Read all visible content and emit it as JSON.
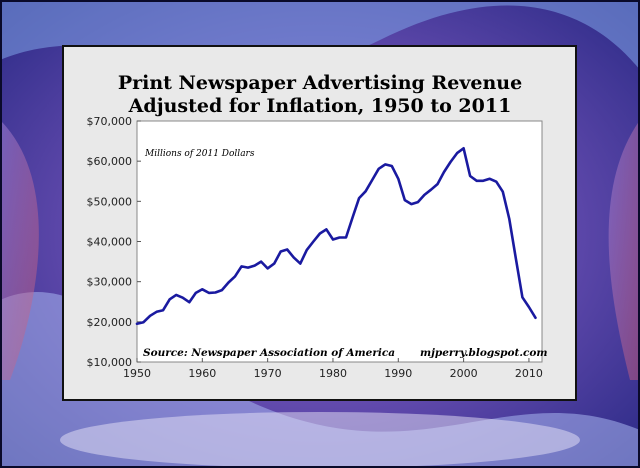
{
  "chart_data": {
    "type": "line",
    "title_lines": [
      "Print Newspaper Advertising Revenue",
      "Adjusted for Inflation, 1950 to 2011"
    ],
    "xlabel": "",
    "ylabel": "",
    "units_note": "Millions of 2011 Dollars",
    "source": "Source: Newspaper Association of America",
    "credit": "mjperry.blogspot.com",
    "xlim": [
      1950,
      2012
    ],
    "ylim": [
      10000,
      70000
    ],
    "x_ticks": [
      1950,
      1960,
      1970,
      1980,
      1990,
      2000,
      2010
    ],
    "x_tick_labels": [
      "1950",
      "1960",
      "1970",
      "1980",
      "1990",
      "2000",
      "2010"
    ],
    "y_ticks": [
      10000,
      20000,
      30000,
      40000,
      50000,
      60000,
      70000
    ],
    "y_tick_labels": [
      "$10,000",
      "$20,000",
      "$30,000",
      "$40,000",
      "$50,000",
      "$60,000",
      "$70,000"
    ],
    "grid": false,
    "series": [
      {
        "name": "Print Newspaper Advertising Revenue",
        "color": "#1a1aa0",
        "x": [
          1950,
          1951,
          1952,
          1953,
          1954,
          1955,
          1956,
          1957,
          1958,
          1959,
          1960,
          1961,
          1962,
          1963,
          1964,
          1965,
          1966,
          1967,
          1968,
          1969,
          1970,
          1971,
          1972,
          1973,
          1974,
          1975,
          1976,
          1977,
          1978,
          1979,
          1980,
          1981,
          1982,
          1983,
          1984,
          1985,
          1986,
          1987,
          1988,
          1989,
          1990,
          1991,
          1992,
          1993,
          1994,
          1995,
          1996,
          1997,
          1998,
          1999,
          2000,
          2001,
          2002,
          2003,
          2004,
          2005,
          2006,
          2007,
          2008,
          2009,
          2010,
          2011
        ],
        "values": [
          19500,
          19900,
          21500,
          22500,
          22900,
          25600,
          26700,
          26000,
          24900,
          27200,
          28100,
          27200,
          27300,
          27900,
          29800,
          31300,
          33800,
          33500,
          34000,
          35000,
          33300,
          34500,
          37500,
          38000,
          36000,
          34500,
          37900,
          40000,
          42000,
          43000,
          40500,
          41000,
          41000,
          46000,
          50800,
          52500,
          55300,
          58100,
          59200,
          58800,
          55600,
          50300,
          49300,
          49800,
          51600,
          52900,
          54300,
          57300,
          59800,
          62000,
          63200,
          56300,
          55100,
          55100,
          55600,
          54900,
          52400,
          45600,
          35700,
          26100,
          23700,
          21000
        ]
      }
    ]
  },
  "colors": {
    "background": "#3a2f8c",
    "frame": "#e9e9e9",
    "plot_area": "#ffffff",
    "line": "#1a1aa0"
  }
}
